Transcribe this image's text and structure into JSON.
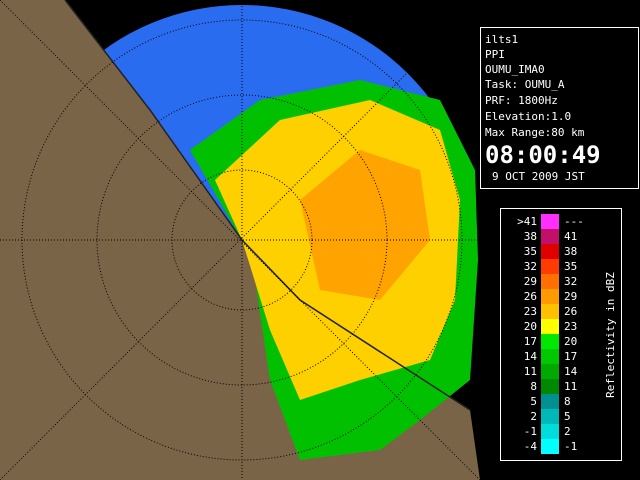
{
  "info": {
    "station": "ilts1",
    "mode": "PPI",
    "product": "OUMU_IMA0",
    "task": "Task: OUMU_A",
    "prf": "PRF: 1800Hz",
    "elevation": "Elevation:1.0",
    "max_range": "Max Range:80 km",
    "time": "08:00:49",
    "date": "9 OCT 2009 JST"
  },
  "legend": {
    "title": "Reflectivity in dBZ",
    "rows": [
      {
        "low": ">41",
        "high": "---",
        "color": "#ff30ff"
      },
      {
        "low": "38",
        "high": "41",
        "color": "#c0106a"
      },
      {
        "low": "35",
        "high": "38",
        "color": "#e00000"
      },
      {
        "low": "32",
        "high": "35",
        "color": "#ff3c00"
      },
      {
        "low": "29",
        "high": "32",
        "color": "#ff7000"
      },
      {
        "low": "26",
        "high": "29",
        "color": "#ff9a00"
      },
      {
        "low": "23",
        "high": "26",
        "color": "#ffc000"
      },
      {
        "low": "20",
        "high": "23",
        "color": "#ffff00"
      },
      {
        "low": "17",
        "high": "20",
        "color": "#00e800"
      },
      {
        "low": "14",
        "high": "17",
        "color": "#00c800"
      },
      {
        "low": "11",
        "high": "14",
        "color": "#00a800"
      },
      {
        "low": "8",
        "high": "11",
        "color": "#008800"
      },
      {
        "low": "5",
        "high": "8",
        "color": "#009090"
      },
      {
        "low": "2",
        "high": "5",
        "color": "#00b8b8"
      },
      {
        "low": "-1",
        "high": "2",
        "color": "#00dcdc"
      },
      {
        "low": "-4",
        "high": "-1",
        "color": "#00ffff"
      }
    ]
  }
}
